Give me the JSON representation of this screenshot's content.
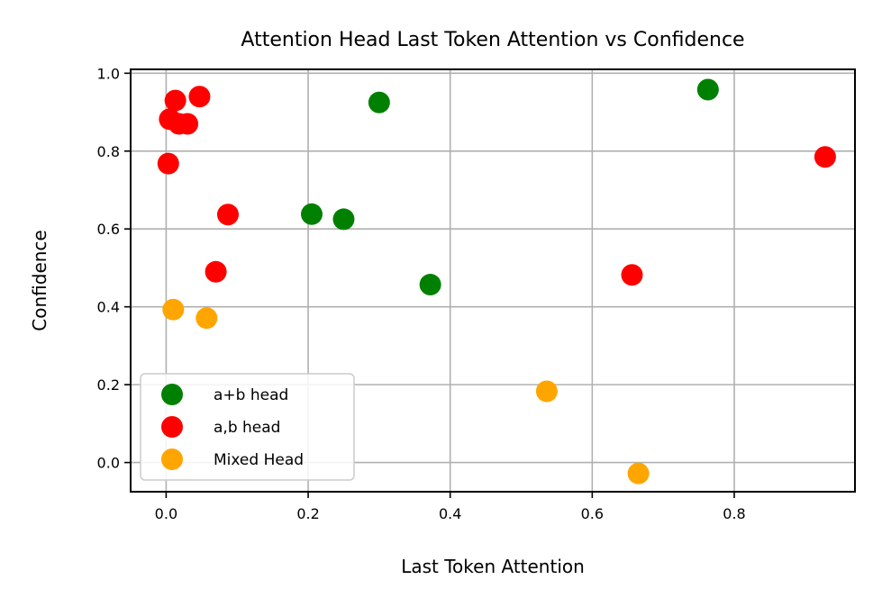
{
  "chart_data": {
    "type": "scatter",
    "title": "Attention Head Last Token Attention vs Confidence",
    "xlabel": "Last Token Attention",
    "ylabel": "Confidence",
    "xlim": [
      -0.05,
      0.97
    ],
    "ylim": [
      -0.075,
      1.01
    ],
    "xticks": [
      0.0,
      0.2,
      0.4,
      0.6,
      0.8
    ],
    "xtick_labels": [
      "0.0",
      "0.2",
      "0.4",
      "0.6",
      "0.8"
    ],
    "yticks": [
      0.0,
      0.2,
      0.4,
      0.6,
      0.8,
      1.0
    ],
    "ytick_labels": [
      "0.0",
      "0.2",
      "0.4",
      "0.6",
      "0.8",
      "1.0"
    ],
    "grid": true,
    "legend_position": "lower-left",
    "series": [
      {
        "name": "a+b head",
        "color": "#008000",
        "points": [
          {
            "x": 0.3,
            "y": 0.925
          },
          {
            "x": 0.763,
            "y": 0.958
          },
          {
            "x": 0.205,
            "y": 0.638
          },
          {
            "x": 0.25,
            "y": 0.625
          },
          {
            "x": 0.372,
            "y": 0.457
          }
        ]
      },
      {
        "name": "a,b head",
        "color": "#ff0000",
        "points": [
          {
            "x": 0.047,
            "y": 0.94
          },
          {
            "x": 0.013,
            "y": 0.93
          },
          {
            "x": 0.005,
            "y": 0.882
          },
          {
            "x": 0.018,
            "y": 0.87
          },
          {
            "x": 0.03,
            "y": 0.87
          },
          {
            "x": 0.003,
            "y": 0.768
          },
          {
            "x": 0.087,
            "y": 0.637
          },
          {
            "x": 0.07,
            "y": 0.49
          },
          {
            "x": 0.656,
            "y": 0.482
          },
          {
            "x": 0.928,
            "y": 0.785
          }
        ]
      },
      {
        "name": "Mixed Head",
        "color": "#ffa500",
        "points": [
          {
            "x": 0.01,
            "y": 0.393
          },
          {
            "x": 0.057,
            "y": 0.371
          },
          {
            "x": 0.536,
            "y": 0.183
          },
          {
            "x": 0.665,
            "y": -0.028
          }
        ]
      }
    ]
  }
}
